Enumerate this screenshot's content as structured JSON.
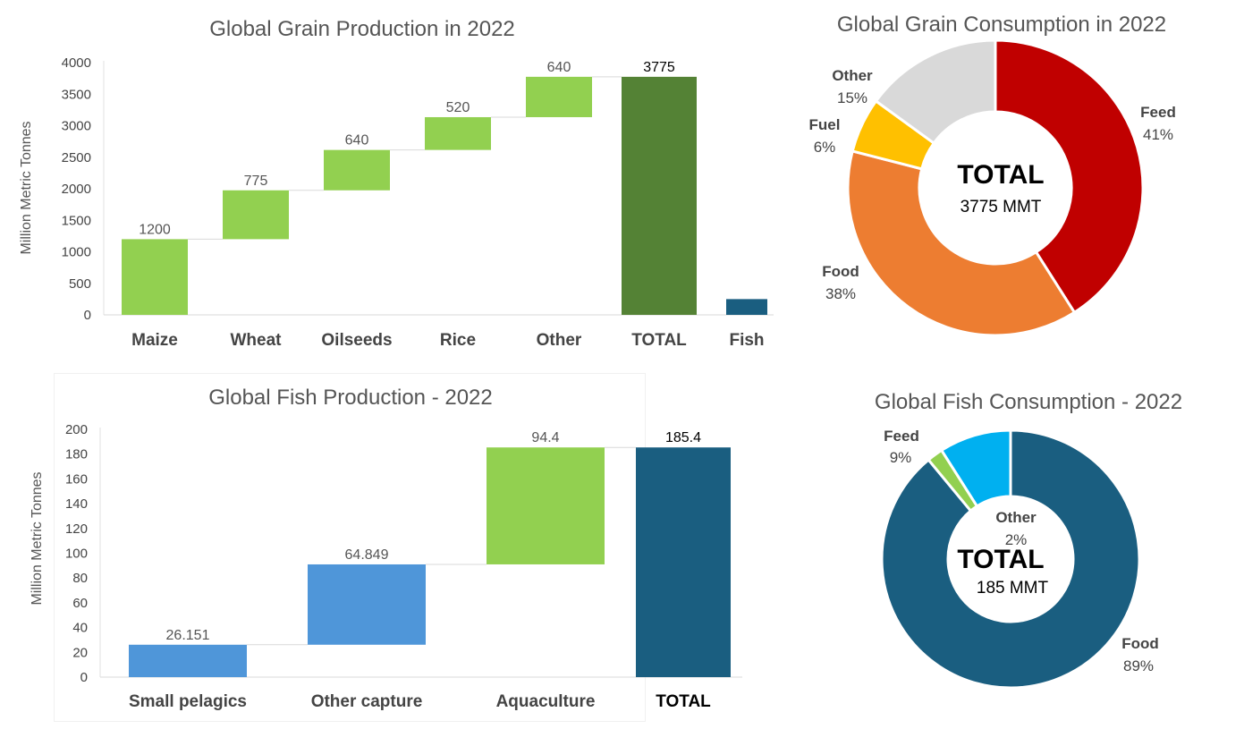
{
  "grain_production": {
    "title": "Global Grain Production in 2022",
    "ylabel": "Million Metric Tonnes",
    "yticks": [
      "0",
      "500",
      "1000",
      "1500",
      "2000",
      "2500",
      "3000",
      "3500",
      "4000"
    ],
    "categories": [
      "Maize",
      "Wheat",
      "Oilseeds",
      "Rice",
      "Other",
      "TOTAL",
      "Fish"
    ],
    "value_labels": [
      "1200",
      "775",
      "640",
      "520",
      "640",
      "3775"
    ]
  },
  "grain_consumption": {
    "title": "Global Grain Consumption in 2022",
    "center_title": "TOTAL",
    "center_value": "3775 MMT",
    "slices": [
      {
        "name": "Feed",
        "pct_label": "41%"
      },
      {
        "name": "Food",
        "pct_label": "38%"
      },
      {
        "name": "Fuel",
        "pct_label": "6%"
      },
      {
        "name": "Other",
        "pct_label": "15%"
      }
    ]
  },
  "fish_production": {
    "title": "Global Fish  Production - 2022",
    "ylabel": "Million Metric Tonnes",
    "yticks": [
      "0",
      "20",
      "40",
      "60",
      "80",
      "100",
      "120",
      "140",
      "160",
      "180",
      "200"
    ],
    "categories": [
      "Small pelagics",
      "Other capture",
      "Aquaculture",
      "TOTAL"
    ],
    "value_labels": [
      "26.151",
      "64.849",
      "94.4",
      "185.4"
    ]
  },
  "fish_consumption": {
    "title": "Global Fish Consumption - 2022",
    "center_title": "TOTAL",
    "center_value": "185 MMT",
    "slices": [
      {
        "name": "Food",
        "pct_label": "89%"
      },
      {
        "name": "Other",
        "pct_label": "2%"
      },
      {
        "name": "Feed",
        "pct_label": "9%"
      }
    ]
  },
  "chart_data": [
    {
      "type": "bar",
      "subtype": "waterfall",
      "title": "Global Grain Production in 2022",
      "ylabel": "Million Metric Tonnes",
      "xlabel": "",
      "ylim": [
        0,
        4000
      ],
      "categories": [
        "Maize",
        "Wheat",
        "Oilseeds",
        "Rice",
        "Other",
        "TOTAL",
        "Fish"
      ],
      "values": [
        1200,
        775,
        640,
        520,
        640,
        3775,
        250
      ],
      "kinds": [
        "step",
        "step",
        "step",
        "step",
        "step",
        "total",
        "standalone"
      ],
      "colors": [
        "#92d050",
        "#92d050",
        "#92d050",
        "#92d050",
        "#92d050",
        "#548235",
        "#1a5e80"
      ]
    },
    {
      "type": "pie",
      "subtype": "donut",
      "title": "Global Grain Consumption in 2022",
      "labels": [
        "Feed",
        "Food",
        "Fuel",
        "Other"
      ],
      "values": [
        41,
        38,
        6,
        15
      ],
      "colors": [
        "#c00000",
        "#ed7d31",
        "#ffc000",
        "#d9d9d9"
      ]
    },
    {
      "type": "bar",
      "subtype": "waterfall",
      "title": "Global Fish  Production - 2022",
      "ylabel": "Million Metric Tonnes",
      "xlabel": "",
      "ylim": [
        0,
        200
      ],
      "categories": [
        "Small pelagics",
        "Other capture",
        "Aquaculture",
        "TOTAL"
      ],
      "values": [
        26.151,
        64.849,
        94.4,
        185.4
      ],
      "kinds": [
        "step",
        "step",
        "step",
        "total"
      ],
      "colors": [
        "#4f96d9",
        "#4f96d9",
        "#92d050",
        "#1a5e80"
      ]
    },
    {
      "type": "pie",
      "subtype": "donut",
      "title": "Global Fish Consumption - 2022",
      "labels": [
        "Food",
        "Other",
        "Feed"
      ],
      "values": [
        89,
        2,
        9
      ],
      "colors": [
        "#1a5e80",
        "#92d050",
        "#00b0f0"
      ]
    }
  ]
}
